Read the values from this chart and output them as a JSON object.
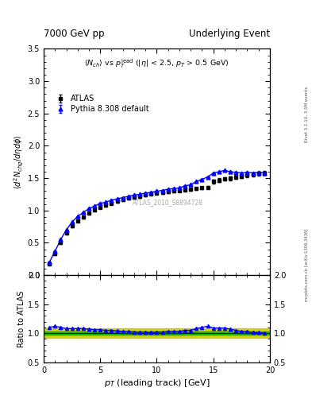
{
  "title_left": "7000 GeV pp",
  "title_right": "Underlying Event",
  "subtitle": "<N_{ch}> vs p_T^{lead} (|\\eta| < 2.5, p_T > 0.5 GeV)",
  "xlabel": "p_{T} (leading track) [GeV]",
  "ylabel_main": "\\langle d^2 N_{chg}/d\\eta d\\phi \\rangle",
  "ylabel_ratio": "Ratio to ATLAS",
  "watermark": "ATLAS_2010_S8894728",
  "right_label": "mcplots.cern.ch [arXiv:1306.3436]",
  "right_label2": "Rivet 3.1.10, 3.5M events",
  "legend_entries": [
    "ATLAS",
    "Pythia 8.308 default"
  ],
  "xlim": [
    0,
    20
  ],
  "ylim_main": [
    0,
    3.5
  ],
  "ylim_ratio": [
    0.5,
    2.0
  ],
  "atlas_x": [
    0.5,
    1.0,
    1.5,
    2.0,
    2.5,
    3.0,
    3.5,
    4.0,
    4.5,
    5.0,
    5.5,
    6.0,
    6.5,
    7.0,
    7.5,
    8.0,
    8.5,
    9.0,
    9.5,
    10.0,
    10.5,
    11.0,
    11.5,
    12.0,
    12.5,
    13.0,
    13.5,
    14.0,
    14.5,
    15.0,
    15.5,
    16.0,
    16.5,
    17.0,
    17.5,
    18.0,
    18.5,
    19.0,
    19.5
  ],
  "atlas_y": [
    0.18,
    0.33,
    0.5,
    0.65,
    0.76,
    0.84,
    0.9,
    0.96,
    1.01,
    1.05,
    1.08,
    1.11,
    1.14,
    1.17,
    1.19,
    1.21,
    1.22,
    1.24,
    1.26,
    1.27,
    1.28,
    1.29,
    1.3,
    1.31,
    1.32,
    1.33,
    1.34,
    1.35,
    1.36,
    1.45,
    1.47,
    1.49,
    1.5,
    1.52,
    1.53,
    1.55,
    1.56,
    1.57,
    1.58
  ],
  "atlas_yerr": [
    0.02,
    0.02,
    0.02,
    0.02,
    0.02,
    0.02,
    0.02,
    0.02,
    0.02,
    0.02,
    0.02,
    0.02,
    0.02,
    0.02,
    0.02,
    0.02,
    0.02,
    0.02,
    0.02,
    0.02,
    0.02,
    0.02,
    0.02,
    0.02,
    0.02,
    0.02,
    0.02,
    0.02,
    0.02,
    0.03,
    0.03,
    0.03,
    0.03,
    0.03,
    0.03,
    0.03,
    0.03,
    0.03,
    0.03
  ],
  "pythia_x": [
    0.5,
    1.0,
    1.5,
    2.0,
    2.5,
    3.0,
    3.5,
    4.0,
    4.5,
    5.0,
    5.5,
    6.0,
    6.5,
    7.0,
    7.5,
    8.0,
    8.5,
    9.0,
    9.5,
    10.0,
    10.5,
    11.0,
    11.5,
    12.0,
    12.5,
    13.0,
    13.5,
    14.0,
    14.5,
    15.0,
    15.5,
    16.0,
    16.5,
    17.0,
    17.5,
    18.0,
    18.5,
    19.0,
    19.5
  ],
  "pythia_y": [
    0.2,
    0.37,
    0.55,
    0.7,
    0.82,
    0.91,
    0.97,
    1.03,
    1.07,
    1.11,
    1.13,
    1.16,
    1.18,
    1.2,
    1.22,
    1.24,
    1.25,
    1.27,
    1.28,
    1.3,
    1.31,
    1.33,
    1.34,
    1.35,
    1.38,
    1.4,
    1.45,
    1.48,
    1.52,
    1.58,
    1.6,
    1.62,
    1.6,
    1.59,
    1.58,
    1.59,
    1.58,
    1.59,
    1.58
  ],
  "pythia_yerr": [
    0.005,
    0.005,
    0.005,
    0.005,
    0.005,
    0.005,
    0.005,
    0.005,
    0.005,
    0.005,
    0.005,
    0.005,
    0.005,
    0.005,
    0.005,
    0.005,
    0.005,
    0.005,
    0.005,
    0.005,
    0.005,
    0.005,
    0.005,
    0.005,
    0.005,
    0.005,
    0.005,
    0.005,
    0.005,
    0.005,
    0.005,
    0.005,
    0.005,
    0.005,
    0.005,
    0.005,
    0.005,
    0.005,
    0.005
  ],
  "ratio_pythia_y": [
    1.1,
    1.12,
    1.1,
    1.08,
    1.08,
    1.08,
    1.08,
    1.07,
    1.06,
    1.06,
    1.05,
    1.05,
    1.04,
    1.03,
    1.03,
    1.02,
    1.02,
    1.02,
    1.01,
    1.02,
    1.02,
    1.03,
    1.03,
    1.03,
    1.05,
    1.05,
    1.08,
    1.1,
    1.12,
    1.09,
    1.09,
    1.09,
    1.07,
    1.05,
    1.03,
    1.03,
    1.01,
    1.01,
    1.0
  ],
  "green_band_y1": 0.97,
  "green_band_y2": 1.03,
  "yellow_band_y1": 0.92,
  "yellow_band_y2": 1.08,
  "atlas_color": "#000000",
  "pythia_color": "#0000ff",
  "bg_color": "#ffffff",
  "green_band_color": "#00bb00",
  "yellow_band_color": "#cccc00",
  "xticks": [
    0,
    5,
    10,
    15,
    20
  ],
  "yticks_main": [
    0.0,
    0.5,
    1.0,
    1.5,
    2.0,
    2.5,
    3.0,
    3.5
  ],
  "yticks_ratio": [
    0.5,
    1.0,
    1.5,
    2.0
  ]
}
